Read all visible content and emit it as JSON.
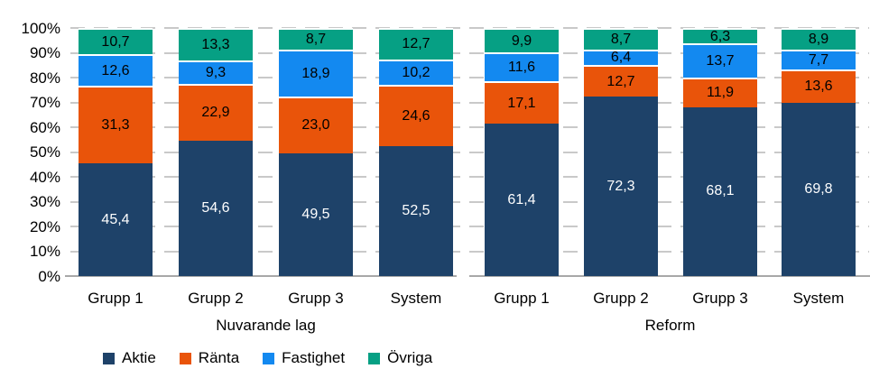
{
  "chart_data": {
    "type": "bar",
    "stacked": true,
    "percent_stacked": true,
    "title": "",
    "xlabel": "",
    "ylabel": "",
    "ylim": [
      0,
      100
    ],
    "yticks": [
      "0%",
      "10%",
      "20%",
      "30%",
      "40%",
      "50%",
      "60%",
      "70%",
      "80%",
      "90%",
      "100%"
    ],
    "grid": "horizontal-dashed",
    "legend_position": "bottom",
    "group_labels": [
      "Nuvarande lag",
      "Reform"
    ],
    "categories": [
      "Grupp 1",
      "Grupp 2",
      "Grupp 3",
      "System",
      "Grupp 1",
      "Grupp 2",
      "Grupp 3",
      "System"
    ],
    "category_groups": [
      0,
      0,
      0,
      0,
      1,
      1,
      1,
      1
    ],
    "decimal_separator": ",",
    "series": [
      {
        "name": "Aktie",
        "color": "#1E4269",
        "label_color": "#FFFFFF",
        "values": [
          45.4,
          54.6,
          49.5,
          52.5,
          61.4,
          72.3,
          68.1,
          69.8
        ]
      },
      {
        "name": "Ränta",
        "color": "#E9540A",
        "label_color": "#000000",
        "values": [
          31.3,
          22.9,
          23.0,
          24.6,
          17.1,
          12.7,
          11.9,
          13.6
        ]
      },
      {
        "name": "Fastighet",
        "color": "#1389F0",
        "label_color": "#000000",
        "values": [
          12.6,
          9.3,
          18.9,
          10.2,
          11.6,
          6.4,
          13.7,
          7.7
        ]
      },
      {
        "name": "Övriga",
        "color": "#06A084",
        "label_color": "#000000",
        "values": [
          10.7,
          13.3,
          8.7,
          12.7,
          9.9,
          8.7,
          6.3,
          8.9
        ]
      }
    ],
    "colors": {
      "gridline": "#C9C9C9",
      "axis_line": "#A8A8A8",
      "background": "#FFFFFF",
      "text": "#000000"
    }
  }
}
